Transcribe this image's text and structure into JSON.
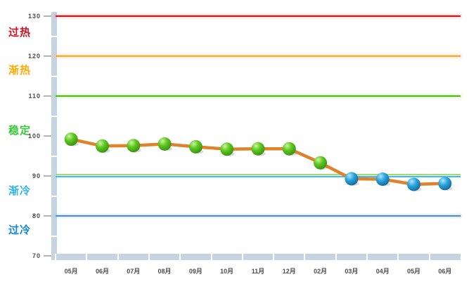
{
  "chart_data": {
    "type": "line",
    "title": "",
    "categories": [
      "05月",
      "06月",
      "07月",
      "08月",
      "09月",
      "10月",
      "11月",
      "12月",
      "02月",
      "03月",
      "04月",
      "05月",
      "06月"
    ],
    "values": [
      99.2,
      97.5,
      97.6,
      98.0,
      97.3,
      96.7,
      96.8,
      96.8,
      93.3,
      89.3,
      89.2,
      87.9,
      88.1
    ],
    "marker_zone": [
      "green",
      "green",
      "green",
      "green",
      "green",
      "green",
      "green",
      "green",
      "green",
      "blue",
      "blue",
      "blue",
      "blue"
    ],
    "y_ticks": [
      130,
      120,
      110,
      100,
      90,
      80,
      70
    ],
    "ylim": [
      70,
      130
    ],
    "grid": "horizontal-zone-boundaries",
    "legend_position": "none",
    "xlabel": "",
    "ylabel": "",
    "line_color": "#e0812c",
    "marker_colors": {
      "green": {
        "hi": "#cdf4a4",
        "mid": "#5ec91f",
        "dark": "#3a9110"
      },
      "blue": {
        "hi": "#aee4fa",
        "mid": "#2fa6dd",
        "dark": "#11699f"
      }
    },
    "axis_band_color": "#c6d3e2",
    "zones": [
      {
        "label": "过热",
        "color": "#cc1122",
        "range": [
          120,
          130
        ]
      },
      {
        "label": "渐热",
        "color": "#ffaa00",
        "range": [
          110,
          120
        ]
      },
      {
        "label": "稳定",
        "color": "#3dc73d",
        "range": [
          90,
          110
        ]
      },
      {
        "label": "渐冷",
        "color": "#2fb4ec",
        "range": [
          80,
          90
        ]
      },
      {
        "label": "过冷",
        "color": "#0f86d6",
        "range": [
          70,
          80
        ]
      }
    ],
    "boundary_lines": [
      {
        "value": 130,
        "color": "#c81616",
        "glow": "rgba(240,130,130,0.55)"
      },
      {
        "value": 120,
        "color": "#ffa51f",
        "glow": "rgba(255,205,140,0.65)"
      },
      {
        "value": 110,
        "color": "#53b517",
        "glow": "rgba(165,225,120,0.6)"
      },
      {
        "value": 90,
        "color": "#a8d96e",
        "second_color": "#30c3f0"
      },
      {
        "value": 80,
        "color": "#508ec9",
        "glow": "rgba(160,200,235,0.6)"
      }
    ]
  }
}
